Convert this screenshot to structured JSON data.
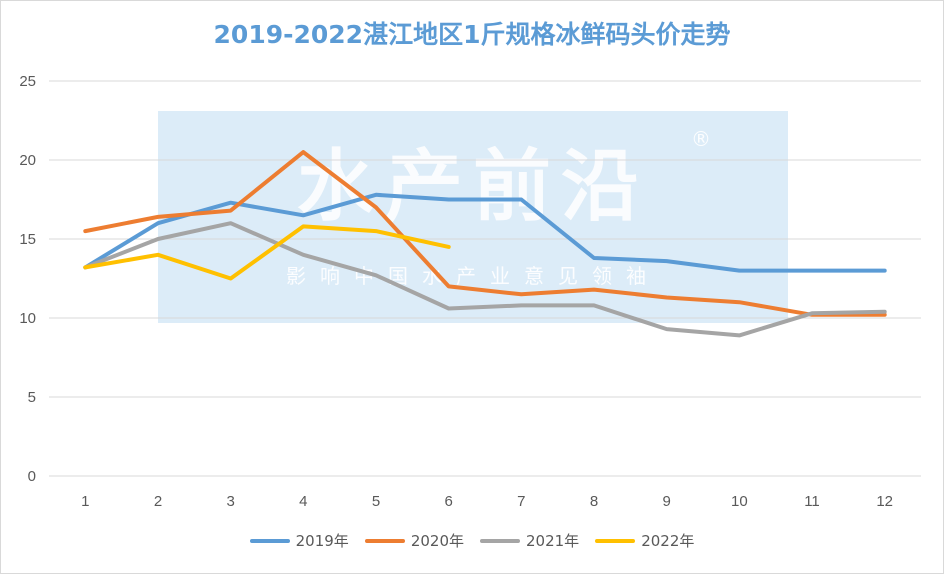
{
  "chart_data": {
    "type": "line",
    "title": "2019-2022湛江地区1斤规格冰鲜码头价走势",
    "xlabel": "",
    "ylabel": "",
    "categories": [
      "1",
      "2",
      "3",
      "4",
      "5",
      "6",
      "7",
      "8",
      "9",
      "10",
      "11",
      "12"
    ],
    "ylim": [
      0,
      25
    ],
    "yticks": [
      "0",
      "5",
      "10",
      "15",
      "20",
      "25"
    ],
    "grid": true,
    "legend_position": "bottom",
    "series": [
      {
        "name": "2019年",
        "color": "#5b9bd5",
        "values": [
          13.2,
          16.0,
          17.3,
          16.5,
          17.8,
          17.5,
          17.5,
          13.8,
          13.6,
          13.0,
          13.0,
          13.0
        ]
      },
      {
        "name": "2020年",
        "color": "#ed7d31",
        "values": [
          15.5,
          16.4,
          16.8,
          20.5,
          17.0,
          12.0,
          11.5,
          11.8,
          11.3,
          11.0,
          10.2,
          10.2
        ]
      },
      {
        "name": "2021年",
        "color": "#a5a5a5",
        "values": [
          13.2,
          15.0,
          16.0,
          14.0,
          12.7,
          10.6,
          10.8,
          10.8,
          9.3,
          8.9,
          10.3,
          10.4
        ]
      },
      {
        "name": "2022年",
        "color": "#ffc000",
        "values": [
          13.2,
          14.0,
          12.5,
          15.8,
          15.5,
          14.5,
          null,
          null,
          null,
          null,
          null,
          null
        ]
      }
    ]
  },
  "watermark": {
    "main": "水产前沿",
    "sub": "影响中国水产业意见领袖",
    "mark": "®",
    "color": "#bfdcf2"
  }
}
